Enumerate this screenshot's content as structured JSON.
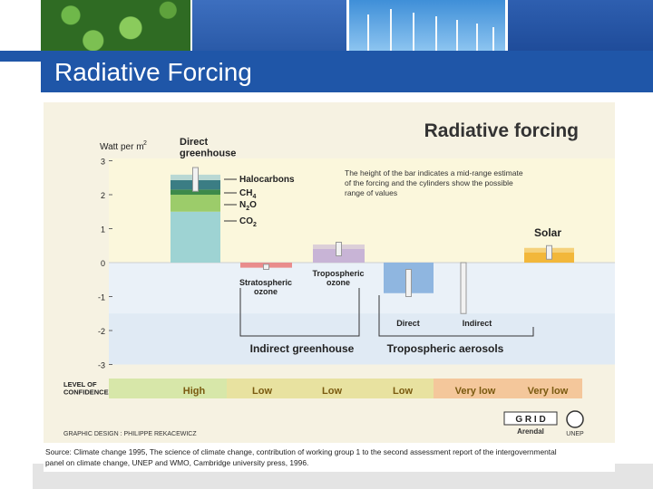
{
  "slide": {
    "title": "Radiative Forcing"
  },
  "colors": {
    "brand_blue": "#1f56a8",
    "chart_bg": "#f6f2e2"
  },
  "chart_data": {
    "type": "bar",
    "title": "Radiative forcing",
    "ylabel": "Watt per m",
    "ylabel_sup": "2",
    "ylim": [
      -3,
      3
    ],
    "yticks": [
      3,
      2,
      1,
      0,
      -1,
      -2,
      -3
    ],
    "note": "The height of the bar indicates a mid-range estimate of the forcing and the cylinders show the possible range of values",
    "direct_greenhouse_label": "Direct\ngreenhouse",
    "stack": {
      "name": "Direct greenhouse",
      "components": [
        {
          "name": "CO",
          "sub": "2",
          "value": 1.5,
          "color": "#9ed3d3"
        },
        {
          "name": "CH",
          "sub": "4",
          "value": 0.5,
          "color": "#9ccc6a"
        },
        {
          "name": "N",
          "sub": "2",
          "tail": "O",
          "value": 0.15,
          "color": "#3d8a4a"
        },
        {
          "name": "Halocarbons",
          "sub": "",
          "value": 0.28,
          "color": "#3b7d84"
        }
      ],
      "range": [
        2.1,
        2.8
      ]
    },
    "bars": [
      {
        "name": "Stratospheric ozone",
        "label": "Stratospheric\nozone",
        "value": -0.15,
        "range": [
          -0.2,
          -0.05
        ],
        "color": "#e98c8c"
      },
      {
        "name": "Tropospheric ozone",
        "label": "Tropospheric\nozone",
        "value": 0.4,
        "range": [
          0.2,
          0.6
        ],
        "color": "#c8b4d6"
      },
      {
        "name": "Direct",
        "label": "Direct",
        "value": -0.9,
        "range": [
          -1.0,
          -0.2
        ],
        "color": "#8fb6e0"
      },
      {
        "name": "Indirect",
        "label": "Indirect",
        "value": 0.0,
        "range": [
          -1.5,
          0.0
        ],
        "color": "#cfd8e2"
      },
      {
        "name": "Solar",
        "label": "Solar",
        "value": 0.3,
        "range": [
          0.1,
          0.5
        ],
        "color": "#f2b73a"
      }
    ],
    "groups": [
      {
        "name": "Indirect greenhouse"
      },
      {
        "name": "Tropospheric aerosols"
      }
    ],
    "confidence": {
      "label": "LEVEL OF\nCONFIDENCE",
      "levels": [
        "High",
        "Low",
        "Low",
        "Low",
        "Very low",
        "Very low"
      ]
    },
    "credits": {
      "design": "GRAPHIC DESIGN : PHILIPPE REKACEWICZ",
      "logo_grid": "G R I D",
      "logo_arendal": "Arendal",
      "logo_unep": "UNEP",
      "source": "Source: Climate change 1995, The science of climate change, contribution of working group 1 to the second assessment report of the intergovernmental panel on climate change, UNEP and WMO, Cambridge university press, 1996."
    }
  }
}
